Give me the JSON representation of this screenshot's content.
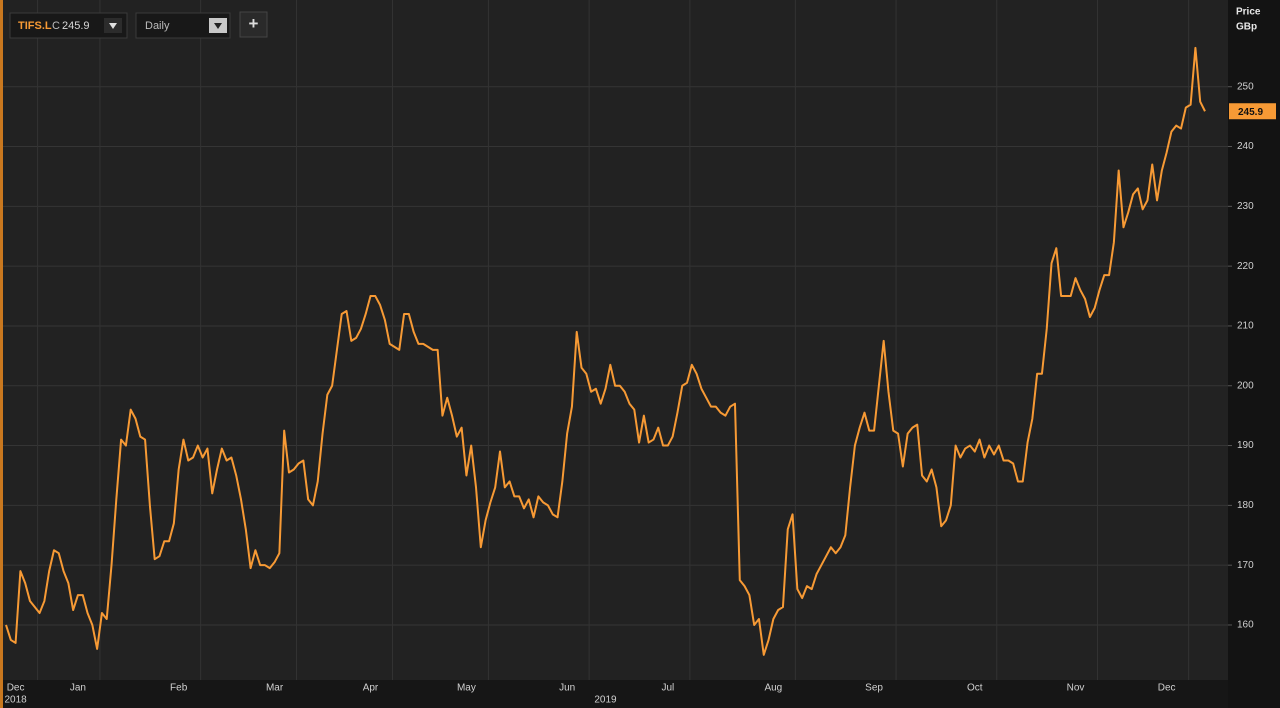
{
  "toolbar": {
    "symbol": "TIFS.L",
    "close_prefix": "C",
    "interval": "Daily",
    "add_button": "+"
  },
  "chart_data": {
    "type": "line",
    "ylabel": "Price",
    "yunit": "GBp",
    "color": "#f79a35",
    "last_price": 245.9,
    "ylim": [
      150.8,
      264.5
    ],
    "yticks": [
      160,
      170,
      180,
      190,
      200,
      210,
      220,
      230,
      240,
      250
    ],
    "grid": true,
    "year_labels": [
      "2018",
      "2019"
    ],
    "categories": [
      null,
      null,
      "Dec",
      null,
      null,
      null,
      null,
      null,
      null,
      null,
      null,
      null,
      null,
      null,
      null,
      "Jan",
      null,
      null,
      null,
      null,
      null,
      null,
      null,
      null,
      null,
      null,
      null,
      null,
      null,
      null,
      null,
      null,
      null,
      null,
      null,
      null,
      "Feb",
      null,
      null,
      null,
      null,
      null,
      null,
      null,
      null,
      null,
      null,
      null,
      null,
      null,
      null,
      null,
      null,
      null,
      null,
      null,
      "Mar",
      null,
      null,
      null,
      null,
      null,
      null,
      null,
      null,
      null,
      null,
      null,
      null,
      null,
      null,
      null,
      null,
      null,
      null,
      null,
      "Apr",
      null,
      null,
      null,
      null,
      null,
      null,
      null,
      null,
      null,
      null,
      null,
      null,
      null,
      null,
      null,
      null,
      null,
      null,
      null,
      "May",
      null,
      null,
      null,
      null,
      null,
      null,
      null,
      null,
      null,
      null,
      null,
      null,
      null,
      null,
      null,
      null,
      null,
      null,
      null,
      null,
      "Jun",
      null,
      null,
      null,
      null,
      null,
      null,
      null,
      null,
      null,
      null,
      null,
      null,
      null,
      null,
      null,
      null,
      null,
      null,
      null,
      null,
      "Jul",
      null,
      null,
      null,
      null,
      null,
      null,
      null,
      null,
      null,
      null,
      null,
      null,
      null,
      null,
      null,
      null,
      null,
      null,
      null,
      null,
      null,
      "Aug",
      null,
      null,
      null,
      null,
      null,
      null,
      null,
      null,
      null,
      null,
      null,
      null,
      null,
      null,
      null,
      null,
      null,
      null,
      null,
      null,
      "Sep",
      null,
      null,
      null,
      null,
      null,
      null,
      null,
      null,
      null,
      null,
      null,
      null,
      null,
      null,
      null,
      null,
      null,
      null,
      null,
      null,
      "Oct",
      null,
      null,
      null,
      null,
      null,
      null,
      null,
      null,
      null,
      null,
      null,
      null,
      null,
      null,
      null,
      null,
      null,
      null,
      null,
      null,
      "Nov",
      null,
      null,
      null,
      null,
      null,
      null,
      null,
      null,
      null,
      null,
      null,
      null,
      null,
      null,
      null,
      null,
      null,
      null,
      "Dec",
      null,
      null,
      null,
      null,
      null,
      null,
      null,
      null
    ],
    "values": [
      160,
      157.5,
      157,
      169,
      167,
      164,
      163,
      162,
      164,
      169,
      172.5,
      172,
      169,
      167,
      162.5,
      165,
      165,
      162,
      160,
      156,
      162,
      161,
      170,
      181,
      191,
      190,
      196,
      194.5,
      191.5,
      191,
      180,
      171,
      171.5,
      174,
      174,
      177,
      186,
      191,
      187.5,
      188,
      190,
      188,
      189.5,
      182,
      186,
      189.5,
      187.5,
      188,
      185,
      181,
      176,
      169.5,
      172.5,
      170,
      170,
      169.5,
      170.5,
      172,
      192.5,
      185.5,
      186,
      187,
      187.5,
      181,
      180,
      184,
      192,
      198.5,
      200,
      206,
      212,
      212.5,
      207.5,
      208,
      209.5,
      212,
      215,
      215,
      213.5,
      211,
      207,
      206.5,
      206,
      212,
      212,
      209,
      207,
      207,
      206.5,
      206,
      206,
      195,
      198,
      195,
      191.5,
      193,
      185,
      190,
      183,
      173,
      177.5,
      180.5,
      183,
      189,
      183,
      184,
      181.5,
      181.5,
      179.5,
      181,
      178,
      181.5,
      180.5,
      180,
      178.5,
      178,
      184,
      192,
      196.5,
      209,
      203,
      202,
      199,
      199.5,
      197,
      199.5,
      203.5,
      200,
      200,
      199,
      197,
      196,
      190.5,
      195,
      190.5,
      191,
      193,
      190,
      190,
      191.5,
      195.5,
      200,
      200.5,
      203.5,
      202,
      199.5,
      198,
      196.5,
      196.5,
      195.5,
      195,
      196.5,
      197,
      167.5,
      166.5,
      165,
      160,
      161,
      155,
      157.5,
      161,
      162.5,
      163,
      176,
      178.5,
      166,
      164.5,
      166.5,
      166,
      168.5,
      170,
      171.5,
      173,
      172,
      173,
      175,
      183,
      190,
      193,
      195.5,
      192.5,
      192.5,
      200,
      207.5,
      199,
      192.5,
      192,
      186.5,
      192,
      193,
      193.5,
      185,
      184,
      186,
      183,
      176.5,
      177.5,
      180,
      190,
      188,
      189.5,
      190,
      189,
      191,
      188,
      190,
      188.5,
      190,
      187.5,
      187.5,
      187,
      184,
      184,
      190.5,
      194.5,
      202,
      202,
      209.5,
      220.5,
      223,
      215,
      215,
      215,
      218,
      216,
      214.5,
      211.5,
      213,
      216,
      218.5,
      218.5,
      224,
      236,
      226.5,
      229,
      232,
      233,
      229.5,
      231,
      237,
      231,
      236,
      239,
      242.5,
      243.5,
      243,
      246.5,
      247,
      256.5,
      247.5,
      245.9
    ]
  }
}
